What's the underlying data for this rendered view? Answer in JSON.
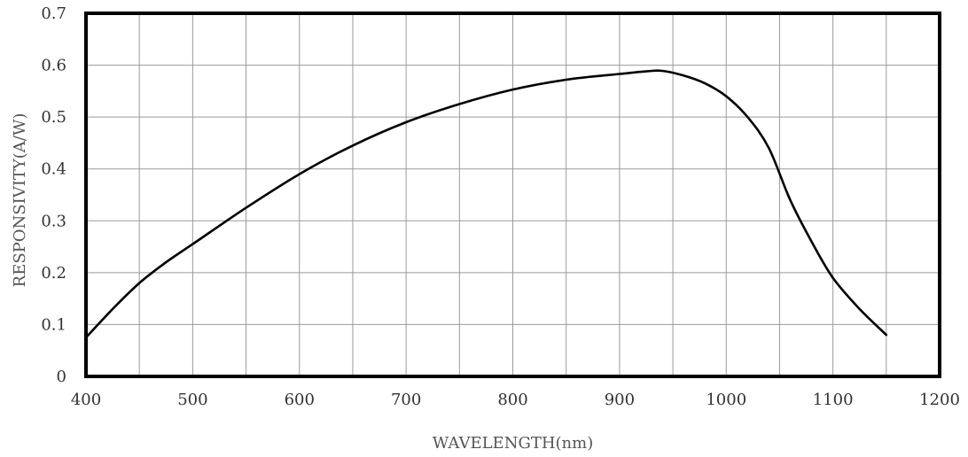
{
  "chart_data": {
    "type": "line",
    "title": "",
    "xlabel": "WAVELENGTH(nm)",
    "ylabel": "RESPONSIVITY(A/W)",
    "xlim": [
      400,
      1200
    ],
    "ylim": [
      0,
      0.7
    ],
    "x_ticks": [
      "400",
      "500",
      "600",
      "700",
      "800",
      "900",
      "1000",
      "1100",
      "1200"
    ],
    "y_ticks": [
      "0",
      "0.1",
      "0.2",
      "0.3",
      "0.4",
      "0.5",
      "0.6",
      "0.7"
    ],
    "x_grid_step": 50,
    "y_grid_step": 0.1,
    "grid": true,
    "colors": {
      "line": "#000000",
      "grid": "#9a9a9a",
      "frame": "#000000"
    },
    "series": [
      {
        "x": [
          400,
          425,
          450,
          475,
          500,
          550,
          600,
          650,
          700,
          750,
          800,
          850,
          900,
          925,
          940,
          960,
          980,
          1000,
          1020,
          1040,
          1060,
          1080,
          1100,
          1125,
          1150
        ],
        "y": [
          0.075,
          0.13,
          0.18,
          0.22,
          0.255,
          0.325,
          0.39,
          0.445,
          0.49,
          0.525,
          0.553,
          0.572,
          0.583,
          0.588,
          0.589,
          0.58,
          0.565,
          0.54,
          0.5,
          0.44,
          0.34,
          0.26,
          0.19,
          0.13,
          0.08
        ]
      }
    ]
  }
}
